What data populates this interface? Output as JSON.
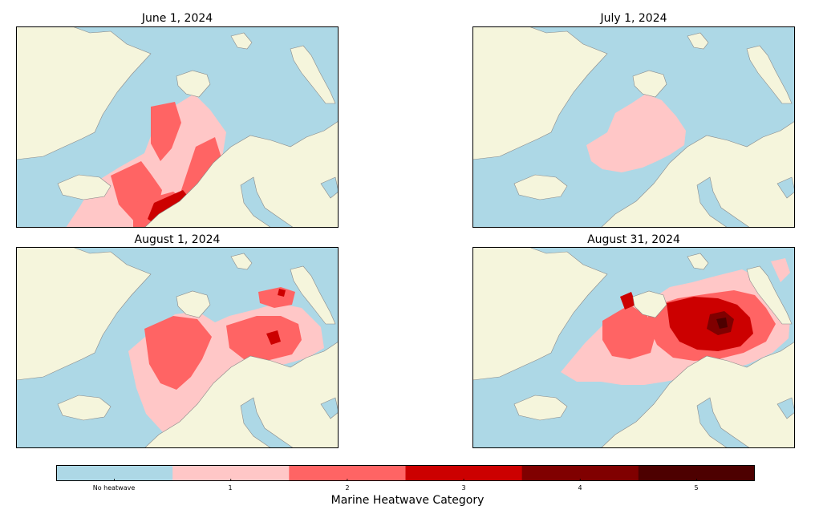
{
  "panels": [
    {
      "title": "June 1, 2024"
    },
    {
      "title": "July 1, 2024"
    },
    {
      "title": "August 1, 2024"
    },
    {
      "title": "August 31, 2024"
    }
  ],
  "colorbar": {
    "title": "Marine Heatwave Category",
    "categories": [
      {
        "label": "No heatwave",
        "color": "#add8e6"
      },
      {
        "label": "1",
        "color": "#ffc7c7"
      },
      {
        "label": "2",
        "color": "#ff6464"
      },
      {
        "label": "3",
        "color": "#cc0000"
      },
      {
        "label": "4",
        "color": "#800000"
      },
      {
        "label": "5",
        "color": "#4d0000"
      }
    ]
  },
  "colors": {
    "ocean": "#add8e6",
    "land": "#f5f5dc",
    "coast": "#8a8a8a"
  }
}
